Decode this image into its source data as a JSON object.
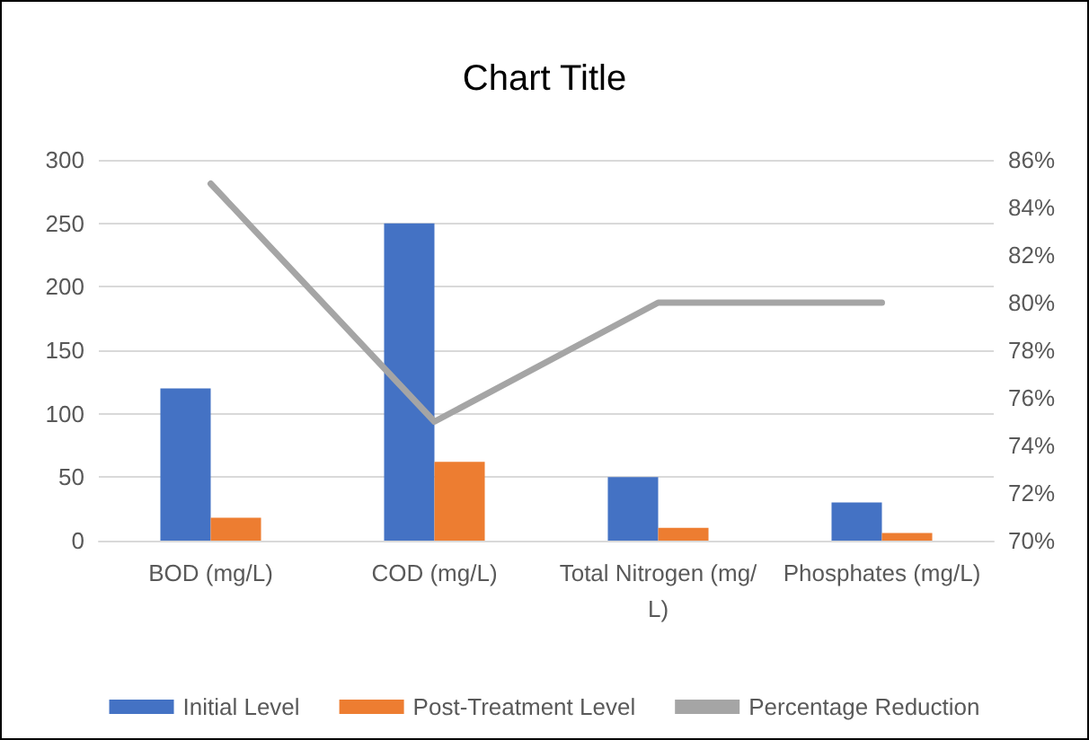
{
  "chart_data": {
    "type": "bar",
    "title": "Chart Title",
    "categories": [
      "BOD (mg/L)",
      "COD (mg/L)",
      "Total Nitrogen (mg/L)",
      "Phosphates (mg/L)"
    ],
    "series": [
      {
        "name": "Initial Level",
        "color": "#4472c4",
        "values": [
          120,
          250,
          50,
          30
        ]
      },
      {
        "name": "Post-Treatment Level",
        "color": "#ed7d31",
        "values": [
          18,
          62,
          10,
          6
        ]
      },
      {
        "name": "Percentage Reduction",
        "type": "line",
        "axis": "y2",
        "color": "#a5a5a5",
        "values": [
          85,
          75,
          80,
          80
        ]
      }
    ],
    "ylim": [
      0,
      300
    ],
    "yticks": [
      0,
      50,
      100,
      150,
      200,
      250,
      300
    ],
    "y2lim": [
      70,
      86
    ],
    "y2ticks": [
      {
        "value": 70,
        "label": "70%"
      },
      {
        "value": 72,
        "label": "72%"
      },
      {
        "value": 74,
        "label": "74%"
      },
      {
        "value": 76,
        "label": "76%"
      },
      {
        "value": 78,
        "label": "78%"
      },
      {
        "value": 80,
        "label": "80%"
      },
      {
        "value": 82,
        "label": "82%"
      },
      {
        "value": 84,
        "label": "84%"
      },
      {
        "value": 86,
        "label": "86%"
      }
    ],
    "grid": "y",
    "legend": "bottom",
    "marker": "none",
    "line_style": "solid"
  }
}
